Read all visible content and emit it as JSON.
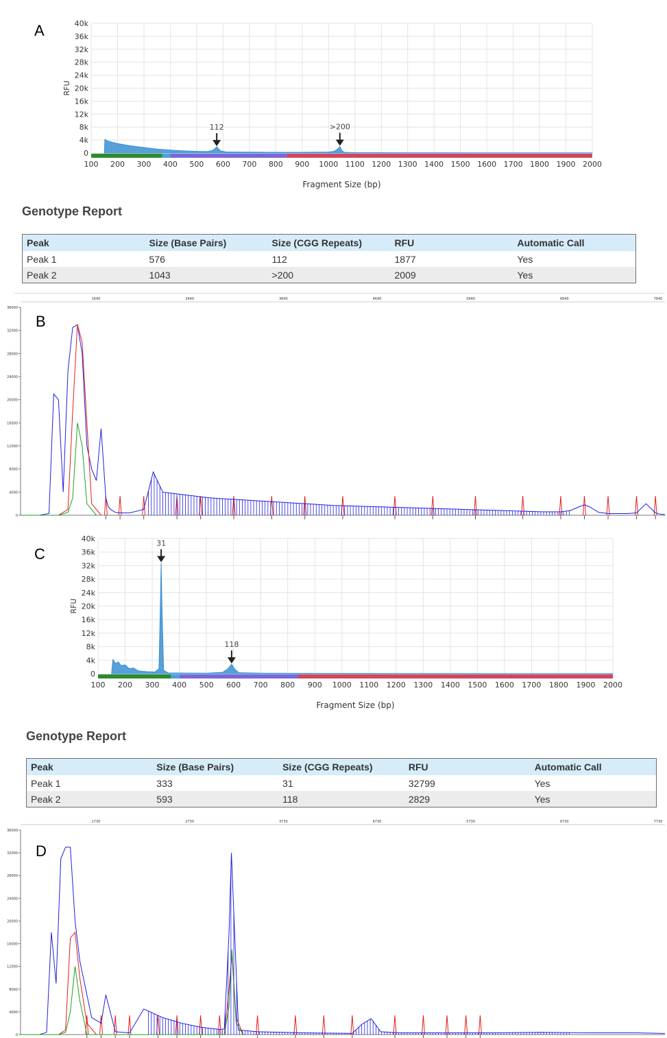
{
  "panels": {
    "A": {
      "label": "A",
      "report_title": "Genotype Report",
      "headers": [
        "Peak",
        "Size (Base Pairs)",
        "Size (CGG Repeats)",
        "RFU",
        "Automatic Call"
      ],
      "rows": [
        [
          "Peak 1",
          "576",
          "112",
          "1877",
          "Yes"
        ],
        [
          "Peak 2",
          "1043",
          ">200",
          "2009",
          "Yes"
        ]
      ]
    },
    "B": {
      "label": "B"
    },
    "C": {
      "label": "C",
      "report_title": "Genotype Report",
      "headers": [
        "Peak",
        "Size (Base Pairs)",
        "Size (CGG Repeats)",
        "RFU",
        "Automatic Call"
      ],
      "rows": [
        [
          "Peak 1",
          "333",
          "31",
          "32799",
          "Yes"
        ],
        [
          "Peak 2",
          "593",
          "118",
          "2829",
          "Yes"
        ]
      ]
    },
    "D": {
      "label": "D"
    }
  },
  "chart_data": [
    {
      "id": "A",
      "type": "area",
      "xlabel": "Fragment Size (bp)",
      "ylabel": "RFU",
      "xlim": [
        100,
        2000
      ],
      "ylim": [
        0,
        40000
      ],
      "x_ticks": [
        "100",
        "200",
        "300",
        "400",
        "500",
        "600",
        "700",
        "800",
        "900",
        "1000",
        "1100",
        "1200",
        "1300",
        "1400",
        "1500",
        "1600",
        "1700",
        "1800",
        "1900",
        "2000"
      ],
      "y_ticks": [
        "0",
        "4k",
        "8k",
        "12k",
        "16k",
        "20k",
        "24k",
        "28k",
        "32k",
        "36k",
        "40k"
      ],
      "grid": true,
      "trace_color": "#3b8fd1",
      "trace": {
        "x": [
          150,
          152,
          160,
          180,
          200,
          250,
          300,
          350,
          400,
          450,
          500,
          540,
          560,
          570,
          576,
          582,
          590,
          610,
          650,
          700,
          800,
          900,
          1000,
          1020,
          1035,
          1043,
          1050,
          1060,
          1100,
          1300,
          1600,
          2000
        ],
        "y": [
          0,
          4200,
          3800,
          3300,
          2900,
          2200,
          1700,
          1200,
          900,
          650,
          500,
          450,
          800,
          1400,
          1877,
          1400,
          700,
          350,
          300,
          260,
          220,
          220,
          300,
          500,
          1200,
          2009,
          800,
          200,
          120,
          80,
          60,
          50
        ]
      },
      "peak_markers": [
        {
          "x": 576,
          "label": "112"
        },
        {
          "x": 1043,
          "label": ">200"
        }
      ],
      "size_bands": [
        {
          "from": 100,
          "to": 370,
          "color": "#2e8b2e"
        },
        {
          "from": 370,
          "to": 400,
          "color": "#4aa3df"
        },
        {
          "from": 400,
          "to": 840,
          "color": "#7b68d8"
        },
        {
          "from": 840,
          "to": 2000,
          "color": "#d0475e"
        }
      ]
    },
    {
      "id": "B",
      "type": "line",
      "x_ticks": [
        "1640",
        "2640",
        "3640",
        "4640",
        "5640",
        "6640",
        "7640"
      ],
      "y_ticks": [
        "0",
        "4000",
        "8000",
        "12000",
        "16000",
        "20000",
        "24000",
        "28000",
        "32000",
        "36000"
      ],
      "ylim": [
        0,
        36000
      ],
      "series": [
        {
          "color": "#1f1fe0",
          "x": [
            0,
            40,
            60,
            70,
            80,
            90,
            100,
            110,
            120,
            130,
            140,
            150,
            160,
            170,
            180,
            185,
            190,
            200,
            210,
            230,
            260,
            280,
            300,
            320,
            340,
            360,
            380,
            400,
            420,
            440,
            460,
            480,
            500,
            520,
            540,
            560,
            580,
            600,
            620,
            640,
            660,
            680,
            700,
            720,
            740,
            760,
            780,
            800,
            820,
            840,
            860,
            880,
            900,
            920,
            940,
            960,
            980,
            1000,
            1020,
            1040,
            1060,
            1080,
            1100,
            1120,
            1140,
            1160,
            1180,
            1190,
            1200,
            1220,
            1240,
            1260,
            1280,
            1300,
            1310,
            1320,
            1340,
            1350,
            1360
          ],
          "y": [
            0,
            0,
            300,
            21000,
            20000,
            4000,
            25000,
            32500,
            33000,
            28000,
            12000,
            8000,
            6000,
            15000,
            3000,
            1500,
            1000,
            500,
            400,
            400,
            1000,
            7500,
            4000,
            3800,
            3600,
            3400,
            3200,
            3000,
            2900,
            2800,
            2700,
            2600,
            2500,
            2400,
            2300,
            2200,
            2100,
            2000,
            1900,
            1800,
            1700,
            1650,
            1600,
            1550,
            1500,
            1450,
            1400,
            1350,
            1300,
            1250,
            1200,
            1150,
            1100,
            1050,
            1000,
            950,
            900,
            850,
            800,
            750,
            700,
            650,
            600,
            600,
            600,
            800,
            1500,
            1800,
            1500,
            500,
            300,
            300,
            300,
            400,
            1200,
            2000,
            400,
            200,
            100
          ]
        },
        {
          "color": "#e01e1e",
          "x": [
            0,
            80,
            100,
            110,
            120,
            130,
            140,
            150,
            170
          ],
          "y": [
            0,
            0,
            1000,
            18000,
            33000,
            30000,
            16000,
            2000,
            0
          ]
        },
        {
          "color": "#1ea01e",
          "x": [
            0,
            80,
            100,
            110,
            120,
            130,
            140,
            160
          ],
          "y": [
            0,
            0,
            500,
            3000,
            16000,
            12000,
            2000,
            0
          ]
        }
      ],
      "ladder_color": "#e01e1e",
      "ladder_x": [
        180,
        210,
        260,
        330,
        380,
        450,
        530,
        600,
        680,
        790,
        870,
        960,
        1060,
        1140,
        1190,
        1240,
        1300,
        1340
      ]
    },
    {
      "id": "C",
      "type": "area",
      "xlabel": "Fragment Size (bp)",
      "ylabel": "RFU",
      "xlim": [
        100,
        2000
      ],
      "ylim": [
        0,
        40000
      ],
      "x_ticks": [
        "100",
        "200",
        "300",
        "400",
        "500",
        "600",
        "700",
        "800",
        "900",
        "1000",
        "1100",
        "1200",
        "1300",
        "1400",
        "1500",
        "1600",
        "1700",
        "1800",
        "1900",
        "2000"
      ],
      "y_ticks": [
        "0",
        "4k",
        "8k",
        "12k",
        "16k",
        "20k",
        "24k",
        "28k",
        "32k",
        "36k",
        "40k"
      ],
      "grid": true,
      "trace_color": "#3b8fd1",
      "trace": {
        "x": [
          150,
          155,
          165,
          175,
          185,
          200,
          215,
          230,
          250,
          280,
          310,
          325,
          330,
          333,
          336,
          342,
          360,
          400,
          500,
          560,
          580,
          593,
          605,
          620,
          700,
          900,
          1200,
          1600,
          2000
        ],
        "y": [
          0,
          4200,
          3000,
          3500,
          2400,
          2600,
          1500,
          1700,
          800,
          600,
          500,
          1500,
          20000,
          32799,
          20000,
          1000,
          200,
          200,
          150,
          400,
          1500,
          2829,
          1300,
          300,
          150,
          100,
          80,
          60,
          50
        ]
      },
      "peak_markers": [
        {
          "x": 333,
          "label": "31"
        },
        {
          "x": 593,
          "label": "118"
        }
      ],
      "size_bands": [
        {
          "from": 100,
          "to": 370,
          "color": "#2e8b2e"
        },
        {
          "from": 370,
          "to": 400,
          "color": "#4aa3df"
        },
        {
          "from": 400,
          "to": 840,
          "color": "#7b68d8"
        },
        {
          "from": 840,
          "to": 2000,
          "color": "#d0475e"
        }
      ]
    },
    {
      "id": "D",
      "type": "line",
      "x_ticks": [
        "1730",
        "2730",
        "3730",
        "4730",
        "5730",
        "6730",
        "7730"
      ],
      "y_ticks": [
        "0",
        "4000",
        "8000",
        "12000",
        "16000",
        "20000",
        "24000",
        "28000",
        "32000",
        "36000"
      ],
      "ylim": [
        0,
        36000
      ],
      "series": [
        {
          "color": "#1f1fe0",
          "x": [
            0,
            40,
            55,
            65,
            75,
            85,
            95,
            105,
            115,
            125,
            135,
            150,
            170,
            180,
            200,
            230,
            260,
            300,
            340,
            380,
            420,
            430,
            440,
            445,
            460,
            500,
            600,
            700,
            720,
            740,
            760,
            800,
            900,
            1000,
            1100,
            1200,
            1300,
            1360
          ],
          "y": [
            0,
            0,
            400,
            18000,
            9000,
            31000,
            33000,
            33000,
            20000,
            13000,
            9000,
            3000,
            2000,
            7000,
            500,
            300,
            4500,
            3000,
            2000,
            1300,
            900,
            1000,
            18000,
            32000,
            800,
            500,
            300,
            200,
            1800,
            2800,
            500,
            300,
            300,
            300,
            400,
            300,
            300,
            200
          ]
        },
        {
          "color": "#e01e1e",
          "x": [
            0,
            80,
            95,
            105,
            115,
            125,
            140,
            160,
            430,
            440,
            446,
            455,
            470
          ],
          "y": [
            0,
            0,
            800,
            17000,
            18000,
            10000,
            2000,
            0,
            0,
            8000,
            14000,
            3000,
            0
          ]
        },
        {
          "color": "#1ea01e",
          "x": [
            0,
            80,
            95,
            105,
            115,
            125,
            140,
            430,
            440,
            446,
            455,
            470
          ],
          "y": [
            0,
            0,
            400,
            4000,
            12000,
            6000,
            0,
            0,
            5000,
            15000,
            2000,
            0
          ]
        }
      ],
      "ladder_color": "#e01e1e",
      "ladder_x": [
        140,
        170,
        200,
        230,
        290,
        330,
        380,
        420,
        500,
        580,
        640,
        700,
        790,
        850,
        900,
        940,
        970
      ]
    }
  ]
}
